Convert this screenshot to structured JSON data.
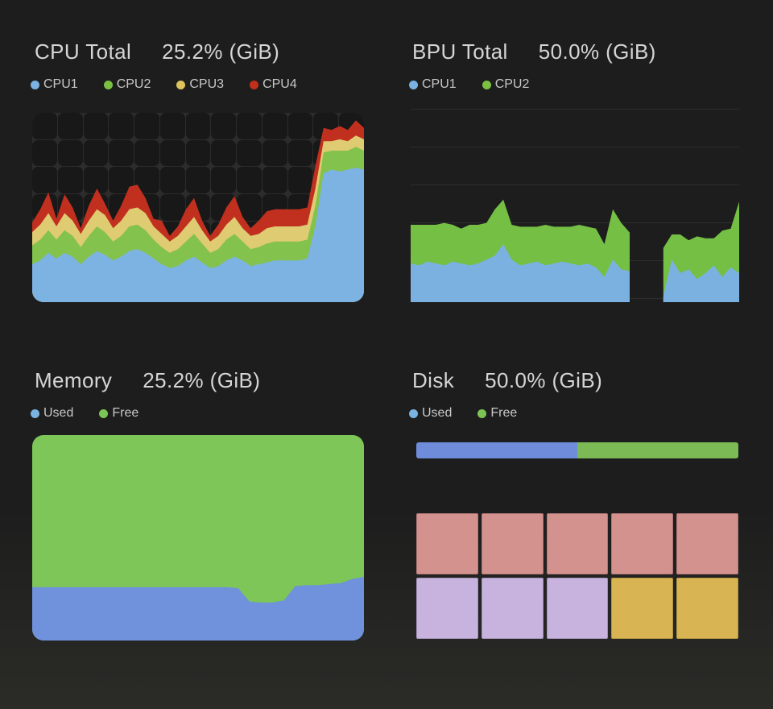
{
  "panels": {
    "cpu": {
      "title": "CPU Total",
      "value": "25.2% (GiB)",
      "legend": [
        {
          "label": "CPU1",
          "color": "#7ab2e1"
        },
        {
          "label": "CPU2",
          "color": "#7cc043"
        },
        {
          "label": "CPU3",
          "color": "#dcc35c"
        },
        {
          "label": "CPU4",
          "color": "#c22f1a"
        }
      ]
    },
    "bpu": {
      "title": "BPU Total",
      "value": "50.0% (GiB)",
      "legend": [
        {
          "label": "CPU1",
          "color": "#7ab2e1"
        },
        {
          "label": "CPU2",
          "color": "#7cc043"
        }
      ]
    },
    "memory": {
      "title": "Memory",
      "value": "25.2% (GiB)",
      "legend": [
        {
          "label": "Used",
          "color": "#7ab2e1"
        },
        {
          "label": "Free",
          "color": "#7cc455"
        }
      ]
    },
    "disk": {
      "title": "Disk",
      "value": "50.0% (GiB)",
      "legend": [
        {
          "label": "Used",
          "color": "#7ab2e1"
        },
        {
          "label": "Free",
          "color": "#7cc455"
        }
      ]
    }
  },
  "chart_data": [
    {
      "id": "cpu",
      "type": "area",
      "stacked": true,
      "title": "CPU Total",
      "value_label": "25.2% (GiB)",
      "x_axis": "time (unlabeled)",
      "y_unit": "percent of chart height",
      "ylim": [
        0,
        100
      ],
      "background_grid": "rounded-tile grid, no axis labels",
      "series": [
        {
          "name": "CPU1",
          "color": "#7db3e3",
          "values": [
            20,
            22,
            26,
            23,
            26,
            24,
            20,
            24,
            27,
            25,
            22,
            24,
            27,
            28,
            26,
            23,
            20,
            18,
            19,
            22,
            24,
            21,
            18,
            19,
            22,
            24,
            22,
            19,
            20,
            21,
            22,
            22,
            22,
            22,
            23,
            40,
            68,
            70,
            69,
            70,
            71,
            70
          ]
        },
        {
          "name": "CPU2",
          "color": "#83c24d",
          "values": [
            10,
            11,
            12,
            10,
            12,
            11,
            9,
            11,
            13,
            12,
            10,
            11,
            13,
            13,
            12,
            10,
            9,
            8,
            9,
            10,
            12,
            10,
            8,
            9,
            11,
            12,
            10,
            9,
            9,
            10,
            10,
            10,
            10,
            10,
            10,
            11,
            11,
            10,
            11,
            10,
            11,
            10
          ]
        },
        {
          "name": "CPU3",
          "color": "#decb72",
          "values": [
            7,
            8,
            9,
            7,
            9,
            8,
            7,
            8,
            9,
            9,
            7,
            8,
            9,
            9,
            9,
            7,
            7,
            6,
            7,
            8,
            9,
            7,
            6,
            7,
            8,
            9,
            7,
            7,
            7,
            8,
            8,
            8,
            8,
            8,
            8,
            9,
            6,
            5,
            6,
            5,
            6,
            6
          ]
        },
        {
          "name": "CPU4",
          "color": "#c1301f",
          "values": [
            5,
            8,
            11,
            4,
            10,
            7,
            3,
            8,
            11,
            6,
            4,
            8,
            12,
            12,
            8,
            4,
            7,
            3,
            5,
            9,
            10,
            5,
            3,
            6,
            9,
            11,
            6,
            4,
            7,
            9,
            9,
            9,
            9,
            9,
            9,
            12,
            7,
            6,
            7,
            6,
            8,
            6
          ]
        }
      ]
    },
    {
      "id": "bpu",
      "type": "area",
      "stacked": true,
      "title": "BPU Total",
      "value_label": "50.0% (GiB)",
      "x_axis": "time (unlabeled)",
      "y_unit": "percent of chart height",
      "ylim": [
        0,
        100
      ],
      "gridlines": {
        "horizontal": 6,
        "color": "#2d2d2d"
      },
      "gap_note": "no samples (null) at indices 27-29",
      "series": [
        {
          "name": "CPU1",
          "color": "#7bb1e0",
          "values": [
            20,
            19,
            21,
            20,
            19,
            21,
            20,
            19,
            20,
            22,
            24,
            30,
            22,
            19,
            20,
            21,
            19,
            20,
            21,
            20,
            19,
            20,
            18,
            13,
            22,
            17,
            16,
            null,
            null,
            null,
            3,
            22,
            15,
            17,
            12,
            15,
            19,
            13,
            18,
            15
          ]
        },
        {
          "name": "CPU2",
          "color": "#74bf44",
          "values": [
            20,
            21,
            19,
            20,
            22,
            19,
            18,
            21,
            20,
            19,
            24,
            23,
            18,
            20,
            19,
            18,
            21,
            19,
            18,
            19,
            21,
            19,
            20,
            17,
            26,
            24,
            20,
            null,
            null,
            null,
            25,
            13,
            20,
            15,
            22,
            18,
            14,
            24,
            20,
            37
          ]
        }
      ]
    },
    {
      "id": "memory",
      "type": "area",
      "stacked": true,
      "title": "Memory",
      "value_label": "25.2% (GiB)",
      "x_axis": "time (unlabeled)",
      "y_unit": "percent of chart height",
      "ylim": [
        0,
        100
      ],
      "series": [
        {
          "name": "Used",
          "color": "#7092dc",
          "values": [
            26,
            26,
            26,
            26,
            26,
            26,
            26,
            26,
            26,
            26,
            26,
            26,
            26,
            26,
            26,
            26,
            26,
            26,
            25.5,
            19,
            18.5,
            18.5,
            19.5,
            26.5,
            27,
            27,
            27.5,
            28,
            30,
            31
          ]
        },
        {
          "name": "Free",
          "color": "#7dc657",
          "values": [
            74,
            74,
            74,
            74,
            74,
            74,
            74,
            74,
            74,
            74,
            74,
            74,
            74,
            74,
            74,
            74,
            74,
            74,
            74.5,
            81,
            81.5,
            81.5,
            80.5,
            73.5,
            73,
            73,
            72.5,
            72,
            70,
            69
          ]
        }
      ]
    },
    {
      "id": "disk",
      "type": "bar",
      "title": "Disk",
      "value_label": "50.0% (GiB)",
      "used_percent": 50,
      "free_percent": 50,
      "bar_colors": {
        "used": "#6e8cd9",
        "free": "#7cba55"
      },
      "block_grid": {
        "rows": 2,
        "cols": 5,
        "palette": {
          "pink": "#d4928f",
          "lavender": "#c7b3de",
          "gold": "#d8b552"
        },
        "cells": [
          [
            "pink",
            "pink",
            "pink",
            "pink",
            "pink"
          ],
          [
            "lavender",
            "lavender",
            "lavender",
            "gold",
            "gold"
          ]
        ]
      }
    }
  ],
  "layout_meta": {
    "tile_grid": {
      "cols": 13,
      "rows": 7
    }
  }
}
